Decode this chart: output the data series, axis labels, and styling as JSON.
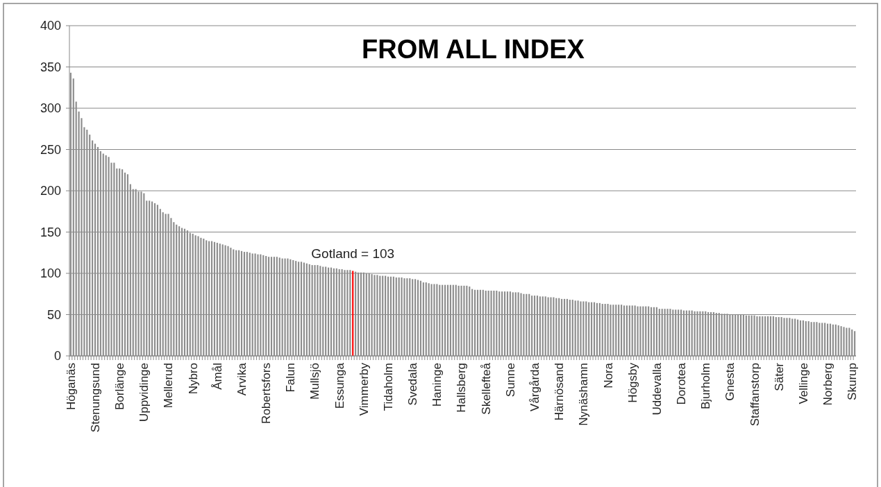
{
  "chart_data": {
    "type": "bar",
    "title": "FROM ALL INDEX",
    "categories": [
      "Höganäs",
      null,
      null,
      null,
      null,
      null,
      null,
      null,
      null,
      "Stenungsund",
      null,
      null,
      null,
      null,
      null,
      null,
      null,
      null,
      "Borlänge",
      null,
      null,
      null,
      null,
      null,
      null,
      null,
      null,
      "Uppvidinge",
      null,
      null,
      null,
      null,
      null,
      null,
      null,
      null,
      "Mellerud",
      null,
      null,
      null,
      null,
      null,
      null,
      null,
      null,
      "Nybro",
      null,
      null,
      null,
      null,
      null,
      null,
      null,
      null,
      "Åmål",
      null,
      null,
      null,
      null,
      null,
      null,
      null,
      null,
      "Arvika",
      null,
      null,
      null,
      null,
      null,
      null,
      null,
      null,
      "Robertsfors",
      null,
      null,
      null,
      null,
      null,
      null,
      null,
      null,
      "Falun",
      null,
      null,
      null,
      null,
      null,
      null,
      null,
      null,
      "Mullsjö",
      null,
      null,
      null,
      null,
      null,
      null,
      null,
      null,
      "Essunga",
      null,
      null,
      null,
      null,
      null,
      null,
      null,
      null,
      "Vimmerby",
      null,
      null,
      null,
      null,
      null,
      null,
      null,
      null,
      "Tidaholm",
      null,
      null,
      null,
      null,
      null,
      null,
      null,
      null,
      "Svedala",
      null,
      null,
      null,
      null,
      null,
      null,
      null,
      null,
      "Haninge",
      null,
      null,
      null,
      null,
      null,
      null,
      null,
      null,
      "Hallsberg",
      null,
      null,
      null,
      null,
      null,
      null,
      null,
      null,
      "Skellefteå",
      null,
      null,
      null,
      null,
      null,
      null,
      null,
      null,
      "Sunne",
      null,
      null,
      null,
      null,
      null,
      null,
      null,
      null,
      "Vårgårda",
      null,
      null,
      null,
      null,
      null,
      null,
      null,
      null,
      "Härnösand",
      null,
      null,
      null,
      null,
      null,
      null,
      null,
      null,
      "Nynäshamn",
      null,
      null,
      null,
      null,
      null,
      null,
      null,
      null,
      "Nora",
      null,
      null,
      null,
      null,
      null,
      null,
      null,
      null,
      "Högsby",
      null,
      null,
      null,
      null,
      null,
      null,
      null,
      null,
      "Uddevalla",
      null,
      null,
      null,
      null,
      null,
      null,
      null,
      null,
      "Dorotea",
      null,
      null,
      null,
      null,
      null,
      null,
      null,
      null,
      "Bjurholm",
      null,
      null,
      null,
      null,
      null,
      null,
      null,
      null,
      "Gnesta",
      null,
      null,
      null,
      null,
      null,
      null,
      null,
      null,
      "Staffanstorp",
      null,
      null,
      null,
      null,
      null,
      null,
      null,
      null,
      "Säter",
      null,
      null,
      null,
      null,
      null,
      null,
      null,
      null,
      "Vellinge",
      null,
      null,
      null,
      null,
      null,
      null,
      null,
      null,
      "Norberg",
      null,
      null,
      null,
      null,
      null,
      null,
      null,
      null,
      "Skurup",
      null
    ],
    "values": [
      343,
      336,
      308,
      296,
      288,
      277,
      274,
      268,
      261,
      257,
      253,
      248,
      245,
      243,
      241,
      234,
      234,
      227,
      227,
      226,
      222,
      220,
      208,
      202,
      202,
      199,
      199,
      197,
      188,
      188,
      187,
      185,
      183,
      178,
      174,
      172,
      172,
      167,
      162,
      159,
      157,
      155,
      154,
      152,
      149,
      148,
      146,
      145,
      143,
      142,
      140,
      139,
      139,
      138,
      137,
      136,
      135,
      134,
      133,
      131,
      129,
      128,
      128,
      127,
      126,
      126,
      125,
      124,
      124,
      123,
      123,
      122,
      121,
      120,
      120,
      120,
      120,
      119,
      118,
      118,
      118,
      117,
      116,
      115,
      114,
      114,
      113,
      112,
      111,
      110,
      110,
      110,
      109,
      108,
      108,
      107,
      107,
      106,
      106,
      105,
      105,
      104,
      104,
      104,
      103,
      102,
      101,
      101,
      101,
      100,
      100,
      99,
      98,
      98,
      97,
      97,
      97,
      96,
      96,
      96,
      95,
      95,
      95,
      94,
      94,
      94,
      93,
      93,
      92,
      91,
      89,
      89,
      88,
      87,
      87,
      87,
      86,
      86,
      86,
      86,
      86,
      86,
      86,
      85,
      85,
      85,
      85,
      84,
      81,
      80,
      80,
      80,
      80,
      79,
      79,
      79,
      79,
      79,
      78,
      78,
      78,
      78,
      78,
      77,
      77,
      77,
      76,
      75,
      75,
      75,
      73,
      73,
      73,
      72,
      72,
      72,
      71,
      71,
      71,
      70,
      70,
      69,
      69,
      69,
      68,
      68,
      67,
      67,
      66,
      66,
      66,
      65,
      65,
      65,
      64,
      64,
      63,
      63,
      63,
      62,
      62,
      62,
      62,
      62,
      61,
      61,
      61,
      61,
      61,
      60,
      60,
      60,
      60,
      60,
      59,
      59,
      59,
      57,
      57,
      57,
      57,
      57,
      56,
      56,
      56,
      56,
      55,
      55,
      55,
      55,
      54,
      54,
      54,
      54,
      54,
      53,
      53,
      53,
      52,
      52,
      51,
      51,
      51,
      50,
      50,
      50,
      50,
      50,
      50,
      49,
      49,
      49,
      49,
      48,
      48,
      48,
      48,
      48,
      48,
      48,
      47,
      47,
      47,
      46,
      46,
      46,
      45,
      45,
      44,
      43,
      43,
      42,
      42,
      41,
      41,
      41,
      40,
      40,
      40,
      39,
      39,
      38,
      38,
      37,
      36,
      35,
      34,
      34,
      32,
      30
    ],
    "colors": [
      "#8c8c8c",
      "#8c8c8c",
      "#8c8c8c",
      "#8c8c8c",
      "#8c8c8c",
      "#8c8c8c",
      "#8c8c8c",
      "#8c8c8c",
      "#8c8c8c",
      "#8c8c8c",
      "#8c8c8c",
      "#8c8c8c",
      "#8c8c8c",
      "#8c8c8c",
      "#8c8c8c",
      "#8c8c8c",
      "#8c8c8c",
      "#8c8c8c",
      "#8c8c8c",
      "#8c8c8c",
      "#8c8c8c",
      "#8c8c8c",
      "#8c8c8c",
      "#8c8c8c",
      "#8c8c8c",
      "#8c8c8c",
      "#8c8c8c",
      "#8c8c8c",
      "#8c8c8c",
      "#8c8c8c",
      "#8c8c8c",
      "#8c8c8c",
      "#8c8c8c",
      "#8c8c8c",
      "#8c8c8c",
      "#8c8c8c",
      "#8c8c8c",
      "#8c8c8c",
      "#8c8c8c",
      "#8c8c8c",
      "#8c8c8c",
      "#8c8c8c",
      "#8c8c8c",
      "#8c8c8c",
      "#8c8c8c",
      "#8c8c8c",
      "#8c8c8c",
      "#8c8c8c",
      "#8c8c8c",
      "#8c8c8c",
      "#8c8c8c",
      "#8c8c8c",
      "#8c8c8c",
      "#8c8c8c",
      "#8c8c8c",
      "#8c8c8c",
      "#8c8c8c",
      "#8c8c8c",
      "#8c8c8c",
      "#8c8c8c",
      "#8c8c8c",
      "#8c8c8c",
      "#8c8c8c",
      "#8c8c8c",
      "#8c8c8c",
      "#8c8c8c",
      "#8c8c8c",
      "#8c8c8c",
      "#8c8c8c",
      "#8c8c8c",
      "#8c8c8c",
      "#8c8c8c",
      "#8c8c8c",
      "#8c8c8c",
      "#8c8c8c",
      "#8c8c8c",
      "#8c8c8c",
      "#8c8c8c",
      "#8c8c8c",
      "#8c8c8c",
      "#8c8c8c",
      "#8c8c8c",
      "#8c8c8c",
      "#8c8c8c",
      "#8c8c8c",
      "#8c8c8c",
      "#8c8c8c",
      "#8c8c8c",
      "#8c8c8c",
      "#8c8c8c",
      "#8c8c8c",
      "#8c8c8c",
      "#8c8c8c",
      "#8c8c8c",
      "#8c8c8c",
      "#8c8c8c",
      "#8c8c8c",
      "#8c8c8c",
      "#8c8c8c",
      "#8c8c8c",
      "#8c8c8c",
      "#8c8c8c",
      "#8c8c8c",
      "#8c8c8c",
      "#ff0000",
      "#8c8c8c",
      "#8c8c8c",
      "#8c8c8c",
      "#8c8c8c",
      "#8c8c8c",
      "#8c8c8c",
      "#8c8c8c",
      "#8c8c8c",
      "#8c8c8c",
      "#8c8c8c",
      "#8c8c8c",
      "#8c8c8c",
      "#8c8c8c",
      "#8c8c8c",
      "#8c8c8c",
      "#8c8c8c",
      "#8c8c8c",
      "#8c8c8c",
      "#8c8c8c",
      "#8c8c8c",
      "#8c8c8c",
      "#8c8c8c",
      "#8c8c8c",
      "#8c8c8c",
      "#8c8c8c",
      "#8c8c8c",
      "#8c8c8c",
      "#8c8c8c",
      "#8c8c8c",
      "#8c8c8c",
      "#8c8c8c",
      "#8c8c8c",
      "#8c8c8c",
      "#8c8c8c",
      "#8c8c8c",
      "#8c8c8c",
      "#8c8c8c",
      "#8c8c8c",
      "#8c8c8c",
      "#8c8c8c",
      "#8c8c8c",
      "#8c8c8c",
      "#8c8c8c",
      "#8c8c8c",
      "#8c8c8c",
      "#8c8c8c",
      "#8c8c8c",
      "#8c8c8c",
      "#8c8c8c",
      "#8c8c8c",
      "#8c8c8c",
      "#8c8c8c",
      "#8c8c8c",
      "#8c8c8c",
      "#8c8c8c",
      "#8c8c8c",
      "#8c8c8c",
      "#8c8c8c",
      "#8c8c8c",
      "#8c8c8c",
      "#8c8c8c",
      "#8c8c8c",
      "#8c8c8c",
      "#8c8c8c",
      "#8c8c8c",
      "#8c8c8c",
      "#8c8c8c",
      "#8c8c8c",
      "#8c8c8c",
      "#8c8c8c",
      "#8c8c8c",
      "#8c8c8c",
      "#8c8c8c",
      "#8c8c8c",
      "#8c8c8c",
      "#8c8c8c",
      "#8c8c8c",
      "#8c8c8c",
      "#8c8c8c",
      "#8c8c8c",
      "#8c8c8c",
      "#8c8c8c",
      "#8c8c8c",
      "#8c8c8c",
      "#8c8c8c",
      "#8c8c8c",
      "#8c8c8c",
      "#8c8c8c",
      "#8c8c8c",
      "#8c8c8c",
      "#8c8c8c",
      "#8c8c8c",
      "#8c8c8c",
      "#8c8c8c",
      "#8c8c8c",
      "#8c8c8c",
      "#8c8c8c",
      "#8c8c8c",
      "#8c8c8c",
      "#8c8c8c",
      "#8c8c8c",
      "#8c8c8c",
      "#8c8c8c",
      "#8c8c8c",
      "#8c8c8c",
      "#8c8c8c",
      "#8c8c8c",
      "#8c8c8c",
      "#8c8c8c",
      "#8c8c8c",
      "#8c8c8c",
      "#8c8c8c",
      "#8c8c8c",
      "#8c8c8c",
      "#8c8c8c",
      "#8c8c8c",
      "#8c8c8c",
      "#8c8c8c",
      "#8c8c8c",
      "#8c8c8c",
      "#8c8c8c",
      "#8c8c8c",
      "#8c8c8c",
      "#8c8c8c",
      "#8c8c8c",
      "#8c8c8c",
      "#8c8c8c",
      "#8c8c8c",
      "#8c8c8c",
      "#8c8c8c",
      "#8c8c8c",
      "#8c8c8c",
      "#8c8c8c",
      "#8c8c8c",
      "#8c8c8c",
      "#8c8c8c",
      "#8c8c8c",
      "#8c8c8c",
      "#8c8c8c",
      "#8c8c8c",
      "#8c8c8c",
      "#8c8c8c",
      "#8c8c8c",
      "#8c8c8c",
      "#8c8c8c",
      "#8c8c8c",
      "#8c8c8c",
      "#8c8c8c",
      "#8c8c8c",
      "#8c8c8c",
      "#8c8c8c",
      "#8c8c8c",
      "#8c8c8c",
      "#8c8c8c",
      "#8c8c8c",
      "#8c8c8c",
      "#8c8c8c",
      "#8c8c8c",
      "#8c8c8c",
      "#8c8c8c",
      "#8c8c8c",
      "#8c8c8c",
      "#8c8c8c",
      "#8c8c8c",
      "#8c8c8c",
      "#8c8c8c",
      "#8c8c8c",
      "#8c8c8c",
      "#8c8c8c",
      "#8c8c8c",
      "#8c8c8c",
      "#8c8c8c",
      "#8c8c8c",
      "#8c8c8c",
      "#8c8c8c",
      "#8c8c8c",
      "#8c8c8c",
      "#8c8c8c",
      "#8c8c8c",
      "#8c8c8c",
      "#8c8c8c",
      "#8c8c8c",
      "#8c8c8c",
      "#8c8c8c",
      "#8c8c8c"
    ],
    "ylim": [
      0,
      400
    ],
    "yticks": [
      0,
      50,
      100,
      150,
      200,
      250,
      300,
      350,
      400
    ],
    "grid": "y",
    "annotations": [
      {
        "text": "Gotland = 103",
        "y": 103
      }
    ]
  }
}
